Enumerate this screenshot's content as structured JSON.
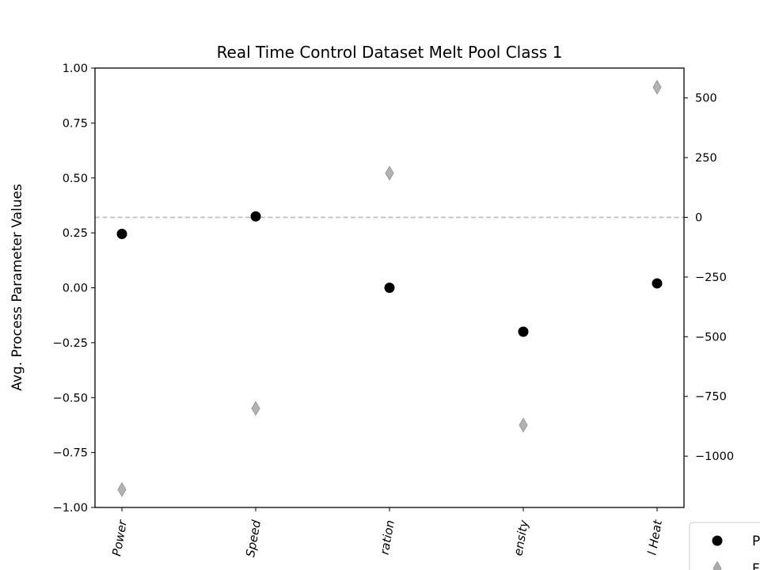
{
  "chart_data": {
    "type": "scatter",
    "title": "Real Time Control Dataset Melt Pool Class 1",
    "ylabel": "Avg. Process Parameter Values",
    "y2label": "",
    "categories": [
      "Power",
      "Speed",
      "ration",
      "ensity",
      "l Heat"
    ],
    "ylim": [
      -1.0,
      1.0
    ],
    "y2lim": [
      -1215,
      625
    ],
    "yticks": [
      1.0,
      0.75,
      0.5,
      0.25,
      0.0,
      -0.25,
      -0.5,
      -0.75,
      -1.0
    ],
    "ytick_labels": [
      "1.00",
      "0.75",
      "0.50",
      "0.25",
      "0.00",
      "−0.25",
      "−0.50",
      "−0.75",
      "−1.00"
    ],
    "y2ticks": [
      500,
      250,
      0,
      -250,
      -500,
      -750,
      -1000
    ],
    "y2tick_labels": [
      "500",
      "250",
      "0",
      "−250",
      "−500",
      "−750",
      "−1000"
    ],
    "reference_line": {
      "axis": "y2",
      "value": 0,
      "style": "dashed",
      "color": "#bbbbbb"
    },
    "grid": false,
    "legend_placement": "lower-right, outside",
    "series": [
      {
        "legend_text": "P",
        "marker": "circle",
        "color": "#000000",
        "axis": "y",
        "values": [
          0.245,
          0.325,
          0.0,
          -0.2,
          0.02
        ]
      },
      {
        "legend_text": "F",
        "marker": "diamond",
        "color": "#aaaaaa",
        "axis": "y2",
        "values": [
          -1140,
          -800,
          185,
          -870,
          545
        ]
      }
    ]
  }
}
